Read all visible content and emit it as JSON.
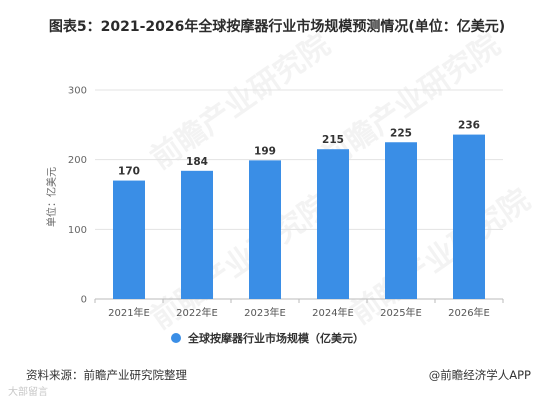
{
  "chart_data": {
    "type": "bar",
    "title": "图表5：2021-2026年全球按摩器行业市场规模预测情况(单位：亿美元)",
    "categories": [
      "2021年E",
      "2022年E",
      "2023年E",
      "2024年E",
      "2025年E",
      "2026年E"
    ],
    "series": [
      {
        "name": "全球按摩器行业市场规模（亿美元）",
        "values": [
          170,
          184,
          199,
          215,
          225,
          236
        ]
      }
    ],
    "ylabel": "单位：亿美元",
    "xlabel": "",
    "ylim": [
      0,
      300
    ],
    "yticks": [
      0,
      100,
      200,
      300
    ],
    "grid": true,
    "legend": "bottom",
    "bar_color": "#3a8ee6"
  },
  "footer": {
    "source": "资料来源：前瞻产业研究院整理",
    "app": "@前瞻经济学人APP"
  },
  "watermark": {
    "text": "前瞻产业研究院",
    "corner": "大部留言"
  }
}
